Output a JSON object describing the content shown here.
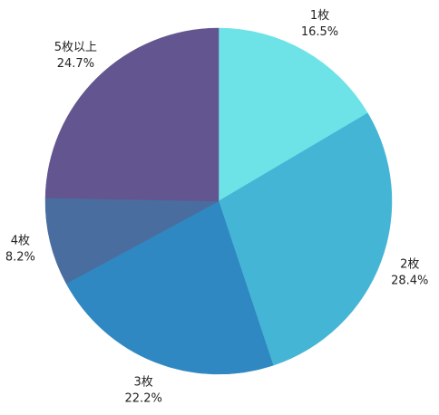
{
  "chart_data": {
    "type": "pie",
    "categories": [
      "1枚",
      "2枚",
      "3枚",
      "4枚",
      "5枚以上"
    ],
    "values": [
      16.5,
      28.4,
      22.2,
      8.2,
      24.7
    ],
    "value_labels": [
      "16.5%",
      "28.4%",
      "22.2%",
      "8.2%",
      "24.7%"
    ],
    "colors": [
      "#6de3e8",
      "#45b5d6",
      "#2f88c1",
      "#4a6d9f",
      "#63558f"
    ]
  }
}
